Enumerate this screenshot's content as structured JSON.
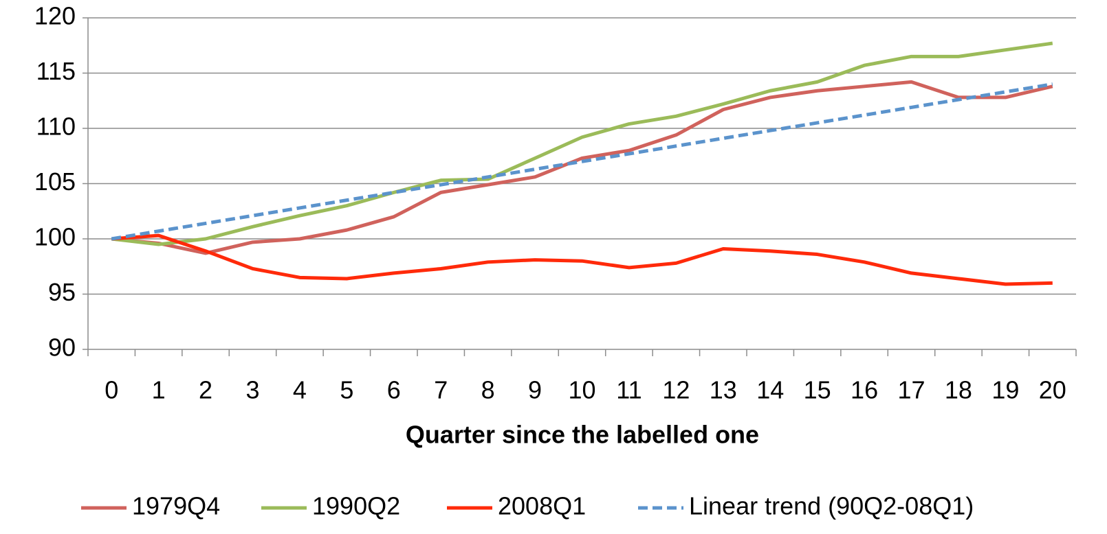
{
  "chart_data": {
    "type": "line",
    "x_label": "Quarter since the labelled one",
    "categories": [
      "0",
      "1",
      "2",
      "3",
      "4",
      "5",
      "6",
      "7",
      "8",
      "9",
      "10",
      "11",
      "12",
      "13",
      "14",
      "15",
      "16",
      "17",
      "18",
      "19",
      "20"
    ],
    "series": [
      {
        "name": "1979Q4",
        "color": "#d0625c",
        "values": [
          100,
          99.6,
          98.7,
          99.7,
          100.0,
          100.8,
          102.0,
          104.2,
          104.9,
          105.6,
          107.3,
          108.0,
          109.4,
          111.7,
          112.8,
          113.4,
          113.8,
          114.2,
          112.8,
          112.8,
          113.8
        ]
      },
      {
        "name": "1990Q2",
        "color": "#9bbb59",
        "values": [
          100,
          99.5,
          100.0,
          101.1,
          102.1,
          103.0,
          104.2,
          105.3,
          105.4,
          107.3,
          109.2,
          110.4,
          111.1,
          112.2,
          113.4,
          114.2,
          115.7,
          116.5,
          116.5,
          117.1,
          117.7
        ]
      },
      {
        "name": "2008Q1",
        "color": "#ff2a0a",
        "values": [
          100,
          100.3,
          98.9,
          97.3,
          96.5,
          96.4,
          96.9,
          97.3,
          97.9,
          98.1,
          98.0,
          97.4,
          97.8,
          99.1,
          98.9,
          98.6,
          97.9,
          96.9,
          96.4,
          95.9,
          96.0
        ]
      },
      {
        "name": "Linear trend (90Q2-08Q1)",
        "color": "#5b93cc",
        "dashed": true,
        "values": [
          100,
          100.7,
          101.4,
          102.1,
          102.8,
          103.5,
          104.2,
          104.9,
          105.6,
          106.3,
          107.0,
          107.7,
          108.4,
          109.1,
          109.8,
          110.5,
          111.2,
          111.9,
          112.6,
          113.3,
          114.0
        ]
      }
    ],
    "ylim": [
      90,
      120
    ],
    "yticks": [
      90,
      95,
      100,
      105,
      110,
      115,
      120
    ],
    "grid": true,
    "legend": "bottom"
  }
}
